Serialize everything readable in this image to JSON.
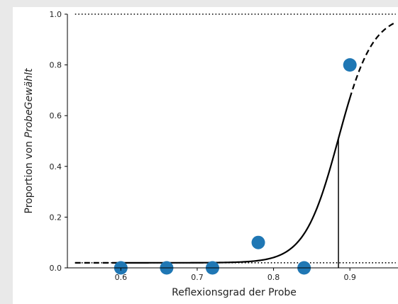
{
  "chart_data": {
    "type": "scatter",
    "title": "",
    "xlabel": "Reflexionsgrad der Probe",
    "ylabel_prefix": "Proportion von ",
    "ylabel_emph": "ProbeGewählt",
    "x_ticks": [
      0.6,
      0.7,
      0.8,
      0.9
    ],
    "x_tick_labels": [
      "0.6",
      "0.7",
      "0.8",
      "0.9"
    ],
    "y_ticks": [
      0.0,
      0.2,
      0.4,
      0.6,
      0.8,
      1.0
    ],
    "y_tick_labels": [
      "0.0",
      "0.2",
      "0.4",
      "0.6",
      "0.8",
      "1.0"
    ],
    "xlim": [
      0.53,
      0.963
    ],
    "ylim": [
      0.0,
      1.0
    ],
    "points": [
      {
        "x": 0.6,
        "y": 0.0
      },
      {
        "x": 0.66,
        "y": 0.0
      },
      {
        "x": 0.72,
        "y": 0.0
      },
      {
        "x": 0.78,
        "y": 0.1
      },
      {
        "x": 0.84,
        "y": 0.0
      },
      {
        "x": 0.9,
        "y": 0.8
      }
    ],
    "fit_curve": {
      "lower_asymptote": 0.02,
      "upper_asymptote": 1.0,
      "midpoint": 0.885,
      "slope": 45,
      "solid_range": [
        0.6,
        0.9
      ],
      "dashed_range": [
        0.54,
        0.96
      ]
    },
    "reference_lines": [
      {
        "orientation": "horizontal",
        "y": 1.0,
        "style": "dotted"
      },
      {
        "orientation": "horizontal",
        "y": 0.02,
        "style": "dotted"
      },
      {
        "orientation": "vertical",
        "x": 0.885,
        "y_from": 0.0,
        "y_to": 0.51,
        "style": "solid"
      }
    ],
    "grid": false,
    "legend": "none",
    "colors": {
      "points": "#1f77b4",
      "curve": "#000000",
      "axes": "#000000"
    }
  }
}
